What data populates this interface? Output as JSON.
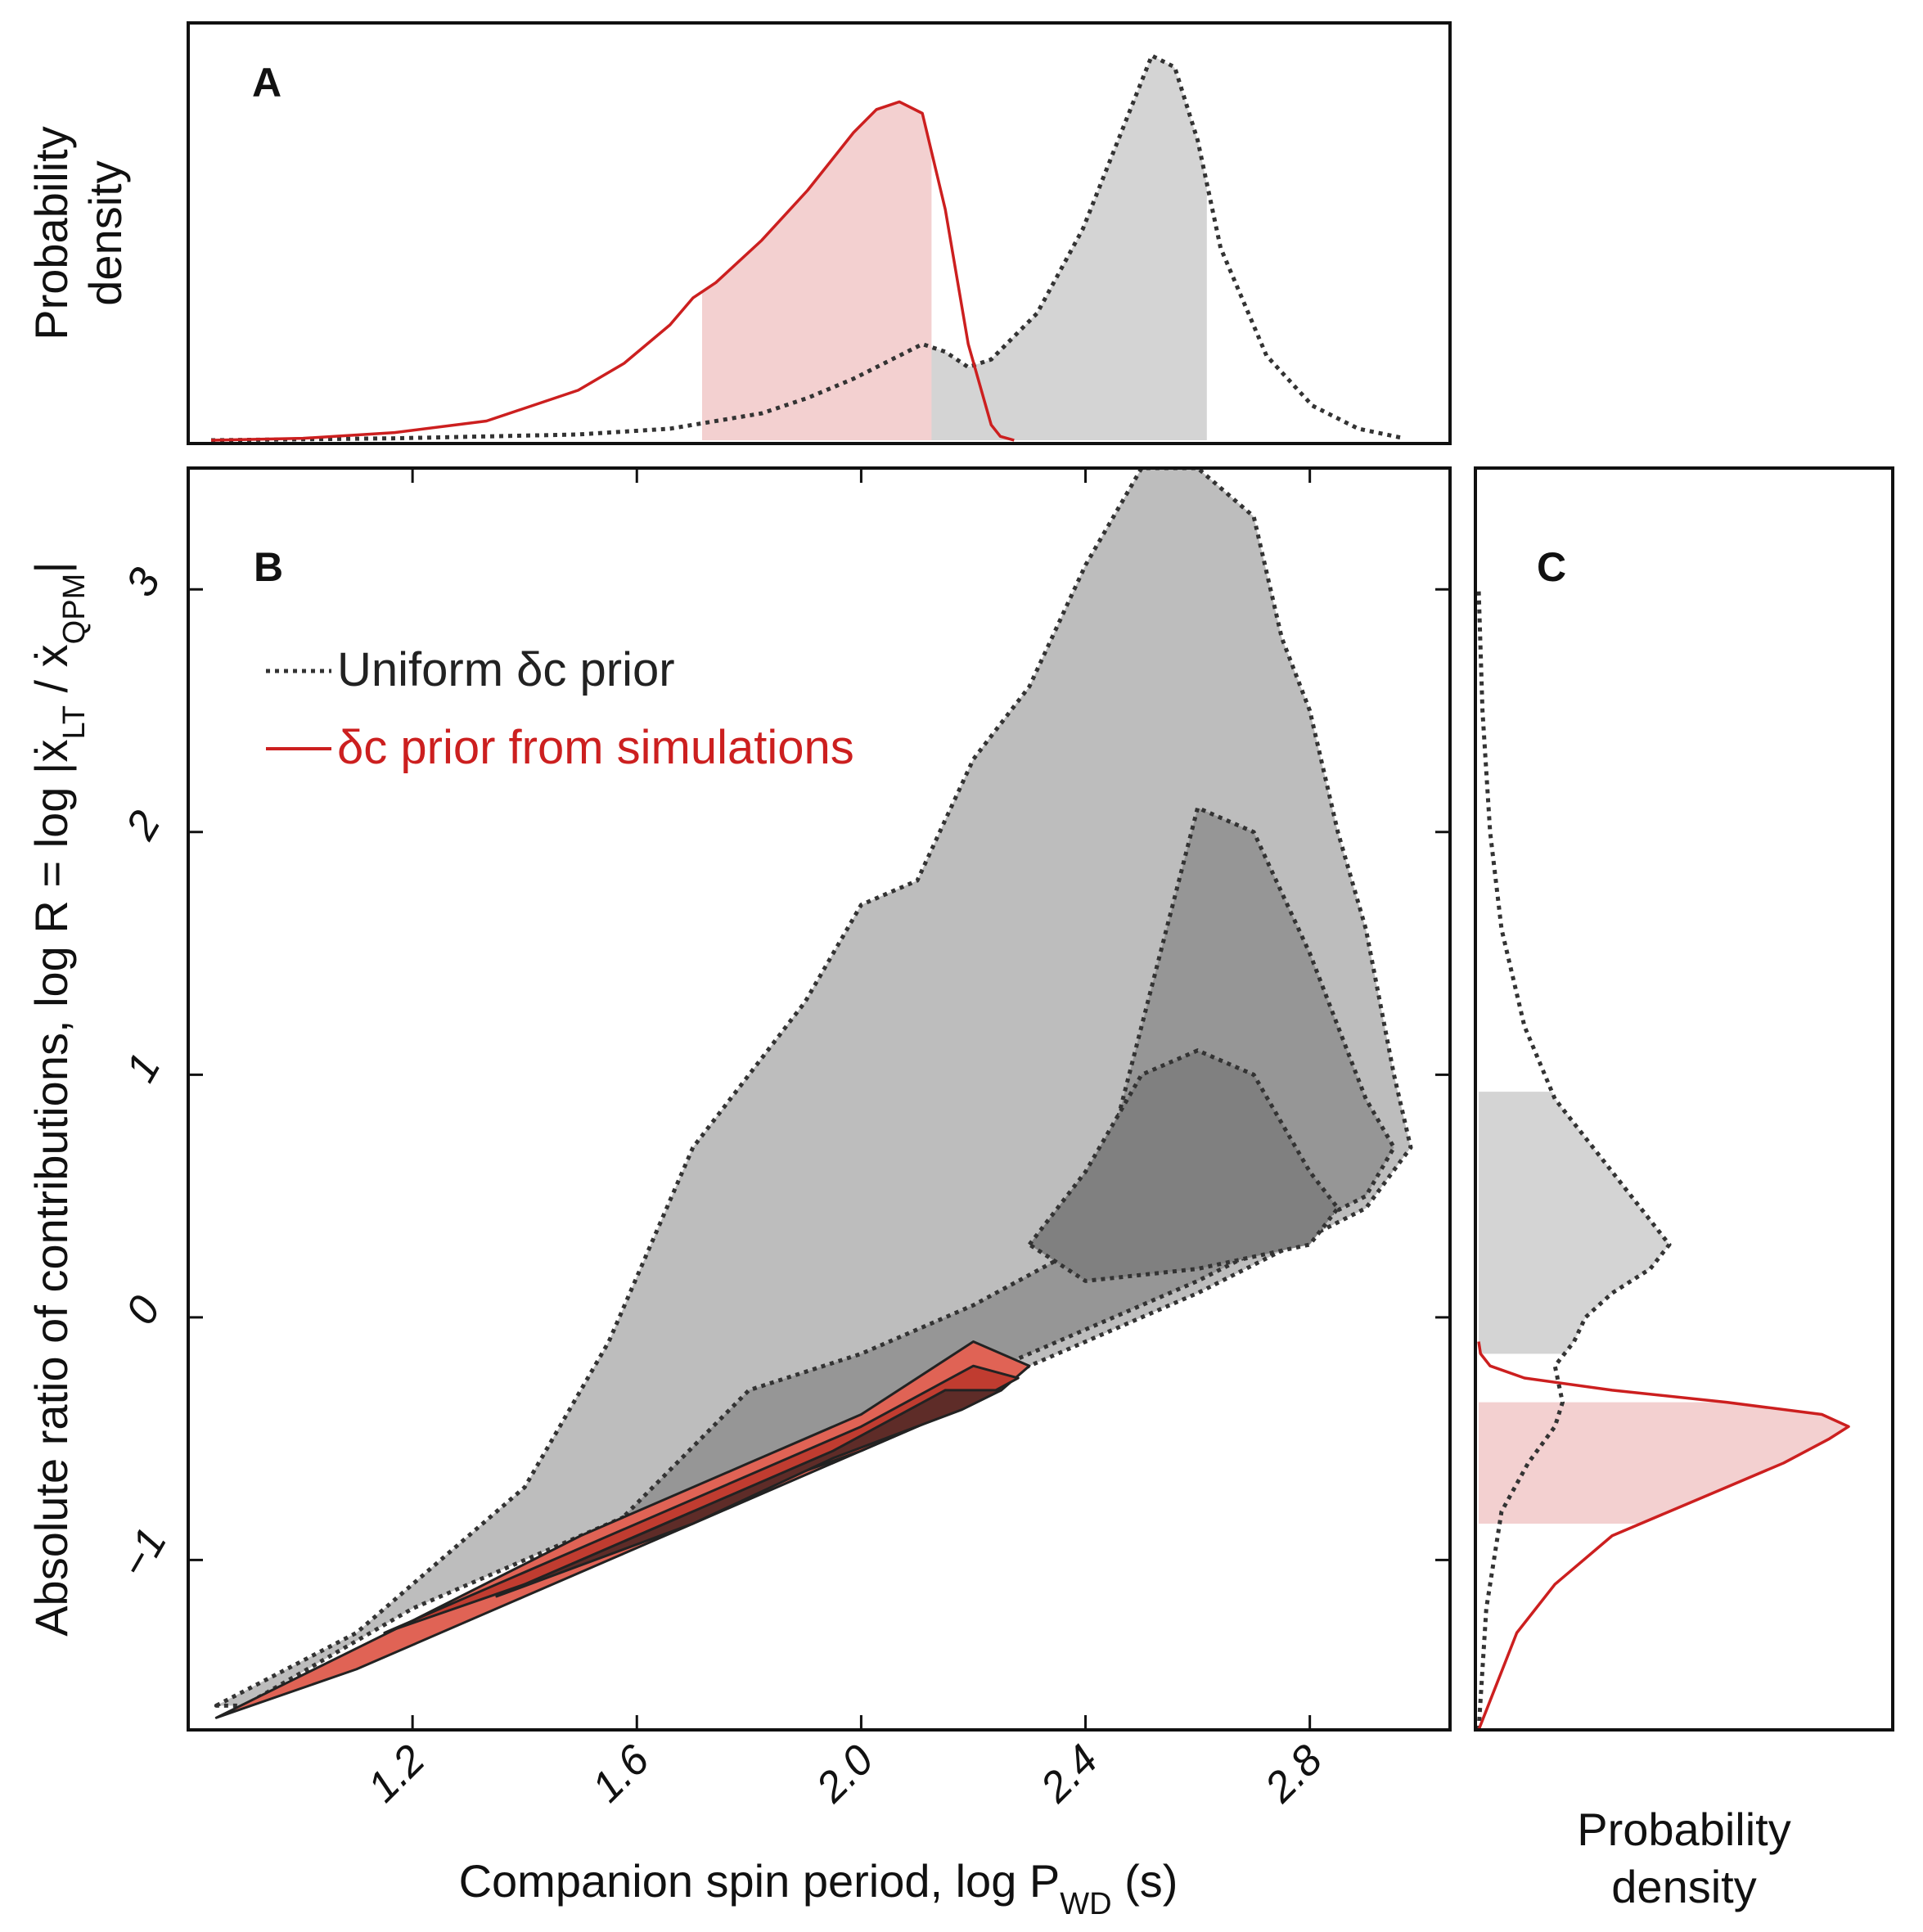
{
  "chart_data": [
    {
      "panel": "A",
      "type": "line",
      "panel_label": "A",
      "ylabel": [
        "Probability",
        "density"
      ],
      "xlim": [
        0.55,
        3.3
      ],
      "ylim": [
        0,
        1.0
      ],
      "series": [
        {
          "name": "Uniform δc prior",
          "style": "dotted",
          "color": "#333333",
          "x": [
            0.6,
            1.0,
            1.4,
            1.6,
            1.8,
            1.9,
            2.0,
            2.1,
            2.15,
            2.2,
            2.25,
            2.3,
            2.4,
            2.5,
            2.6,
            2.65,
            2.7,
            2.75,
            2.8,
            2.9,
            3.0,
            3.1,
            3.2
          ],
          "y": [
            0.0,
            0.005,
            0.015,
            0.03,
            0.07,
            0.11,
            0.16,
            0.22,
            0.25,
            0.23,
            0.19,
            0.21,
            0.33,
            0.55,
            0.85,
            1.0,
            0.97,
            0.78,
            0.5,
            0.22,
            0.09,
            0.03,
            0.005
          ],
          "shaded_interval": [
            2.16,
            2.77
          ]
        },
        {
          "name": "δc prior from simulations",
          "style": "solid",
          "color": "#cc1f1f",
          "x": [
            0.6,
            0.8,
            1.0,
            1.2,
            1.4,
            1.5,
            1.6,
            1.65,
            1.7,
            1.8,
            1.9,
            2.0,
            2.05,
            2.1,
            2.15,
            2.2,
            2.25,
            2.3,
            2.32,
            2.35
          ],
          "y": [
            0.0,
            0.005,
            0.02,
            0.05,
            0.13,
            0.2,
            0.3,
            0.37,
            0.41,
            0.52,
            0.65,
            0.8,
            0.86,
            0.88,
            0.85,
            0.6,
            0.25,
            0.04,
            0.01,
            0.0
          ],
          "shaded_interval": [
            1.67,
            2.17
          ]
        }
      ]
    },
    {
      "panel": "B",
      "type": "contour",
      "panel_label": "B",
      "xlabel": "Companion spin period, log P",
      "xlabel_sub": "WD",
      "xlabel_suffix": " (s)",
      "ylabel": "Absolute ratio of contributions, log R = log |ẋ",
      "ylabel_sub1": "LT",
      "ylabel_mid": " / ẋ",
      "ylabel_sub2": "QPM",
      "ylabel_end": "|",
      "xlim": [
        0.8,
        3.05
      ],
      "ylim": [
        -1.7,
        3.5
      ],
      "xticks": [
        1.2,
        1.6,
        2.0,
        2.4,
        2.8
      ],
      "xtick_labels": [
        "1.2",
        "1.6",
        "2.0",
        "2.4",
        "2.8"
      ],
      "yticks": [
        -1,
        0,
        1,
        2,
        3
      ],
      "ytick_labels": [
        "−1",
        "0",
        "1",
        "2",
        "3"
      ],
      "legend": [
        {
          "label": "Uniform δc prior",
          "style": "dotted",
          "color": "#333333"
        },
        {
          "label": "δc prior from simulations",
          "style": "solid",
          "color": "#cc1f1f"
        }
      ],
      "contours_uniform": [
        {
          "level": "outer",
          "fill": "#bdbdbd",
          "x": [
            0.85,
            1.1,
            1.4,
            1.55,
            1.7,
            1.8,
            1.9,
            2.0,
            2.1,
            2.2,
            2.3,
            2.4,
            2.5,
            2.6,
            2.7,
            2.75,
            2.8,
            2.85,
            2.9,
            2.95,
            2.98,
            2.9,
            2.6,
            2.3,
            2.0,
            1.6,
            1.2,
            0.9
          ],
          "y": [
            -1.6,
            -1.3,
            -0.7,
            -0.1,
            0.7,
            1.0,
            1.3,
            1.7,
            1.8,
            2.3,
            2.6,
            3.1,
            3.5,
            3.5,
            3.3,
            2.8,
            2.5,
            2.0,
            1.6,
            1.0,
            0.7,
            0.45,
            0.1,
            -0.2,
            -0.45,
            -0.8,
            -1.2,
            -1.6
          ]
        },
        {
          "level": "middle",
          "fill": "#969696",
          "x": [
            1.5,
            1.8,
            2.0,
            2.2,
            2.4,
            2.5,
            2.6,
            2.7,
            2.8,
            2.9,
            2.95,
            2.9,
            2.6,
            2.3,
            2.0,
            1.7
          ],
          "y": [
            -1.0,
            -0.3,
            -0.15,
            0.05,
            0.3,
            1.2,
            2.1,
            2.0,
            1.5,
            0.9,
            0.7,
            0.5,
            0.15,
            -0.15,
            -0.45,
            -0.8
          ]
        },
        {
          "level": "inner",
          "fill": "#808080",
          "x": [
            2.3,
            2.4,
            2.5,
            2.6,
            2.7,
            2.8,
            2.85,
            2.8,
            2.6,
            2.4
          ],
          "y": [
            0.3,
            0.6,
            1.0,
            1.1,
            1.0,
            0.6,
            0.45,
            0.3,
            0.2,
            0.15
          ]
        }
      ],
      "contours_simulations": [
        {
          "level": "outer",
          "fill": "#e06355",
          "x": [
            0.85,
            1.2,
            1.5,
            1.8,
            2.0,
            2.2,
            2.3,
            2.25,
            2.0,
            1.7,
            1.4,
            1.1,
            0.85
          ],
          "y": [
            -1.65,
            -1.25,
            -0.9,
            -0.6,
            -0.4,
            -0.1,
            -0.2,
            -0.3,
            -0.55,
            -0.85,
            -1.15,
            -1.45,
            -1.65
          ]
        },
        {
          "level": "middle",
          "fill": "#c03c30",
          "x": [
            1.15,
            1.5,
            1.8,
            2.0,
            2.2,
            2.28,
            2.2,
            2.0,
            1.7,
            1.4,
            1.15
          ],
          "y": [
            -1.3,
            -0.95,
            -0.65,
            -0.45,
            -0.2,
            -0.25,
            -0.35,
            -0.55,
            -0.8,
            -1.1,
            -1.3
          ]
        },
        {
          "level": "inner",
          "fill": "#5e2c28",
          "x": [
            1.35,
            1.7,
            1.95,
            2.15,
            2.25,
            2.18,
            1.95,
            1.7,
            1.35
          ],
          "y": [
            -1.15,
            -0.8,
            -0.55,
            -0.3,
            -0.3,
            -0.38,
            -0.58,
            -0.85,
            -1.15
          ]
        }
      ]
    },
    {
      "panel": "C",
      "type": "line",
      "orientation": "horizontal",
      "panel_label": "C",
      "xlabel": [
        "Probability",
        "density"
      ],
      "ylim": [
        -1.7,
        3.5
      ],
      "xlim": [
        0,
        1.0
      ],
      "series": [
        {
          "name": "Uniform δc prior",
          "style": "dotted",
          "color": "#333333",
          "y": [
            -1.7,
            -1.2,
            -0.8,
            -0.6,
            -0.45,
            -0.35,
            -0.2,
            -0.1,
            0.0,
            0.1,
            0.2,
            0.3,
            0.4,
            0.5,
            0.7,
            0.9,
            1.2,
            1.6,
            2.0,
            2.5,
            3.0
          ],
          "x": [
            0.0,
            0.02,
            0.06,
            0.13,
            0.2,
            0.22,
            0.2,
            0.25,
            0.28,
            0.35,
            0.45,
            0.5,
            0.45,
            0.4,
            0.3,
            0.2,
            0.12,
            0.06,
            0.03,
            0.01,
            0.0
          ],
          "shaded_interval": [
            -0.15,
            0.93
          ]
        },
        {
          "name": "δc prior from simulations",
          "style": "solid",
          "color": "#cc1f1f",
          "y": [
            -1.7,
            -1.5,
            -1.3,
            -1.1,
            -0.9,
            -0.8,
            -0.7,
            -0.6,
            -0.5,
            -0.45,
            -0.4,
            -0.35,
            -0.3,
            -0.25,
            -0.2,
            -0.15,
            -0.1
          ],
          "x": [
            0.0,
            0.05,
            0.1,
            0.2,
            0.35,
            0.5,
            0.65,
            0.8,
            0.92,
            0.97,
            0.9,
            0.65,
            0.35,
            0.12,
            0.03,
            0.005,
            0.0
          ],
          "shaded_interval": [
            -0.85,
            -0.35
          ]
        }
      ]
    }
  ]
}
